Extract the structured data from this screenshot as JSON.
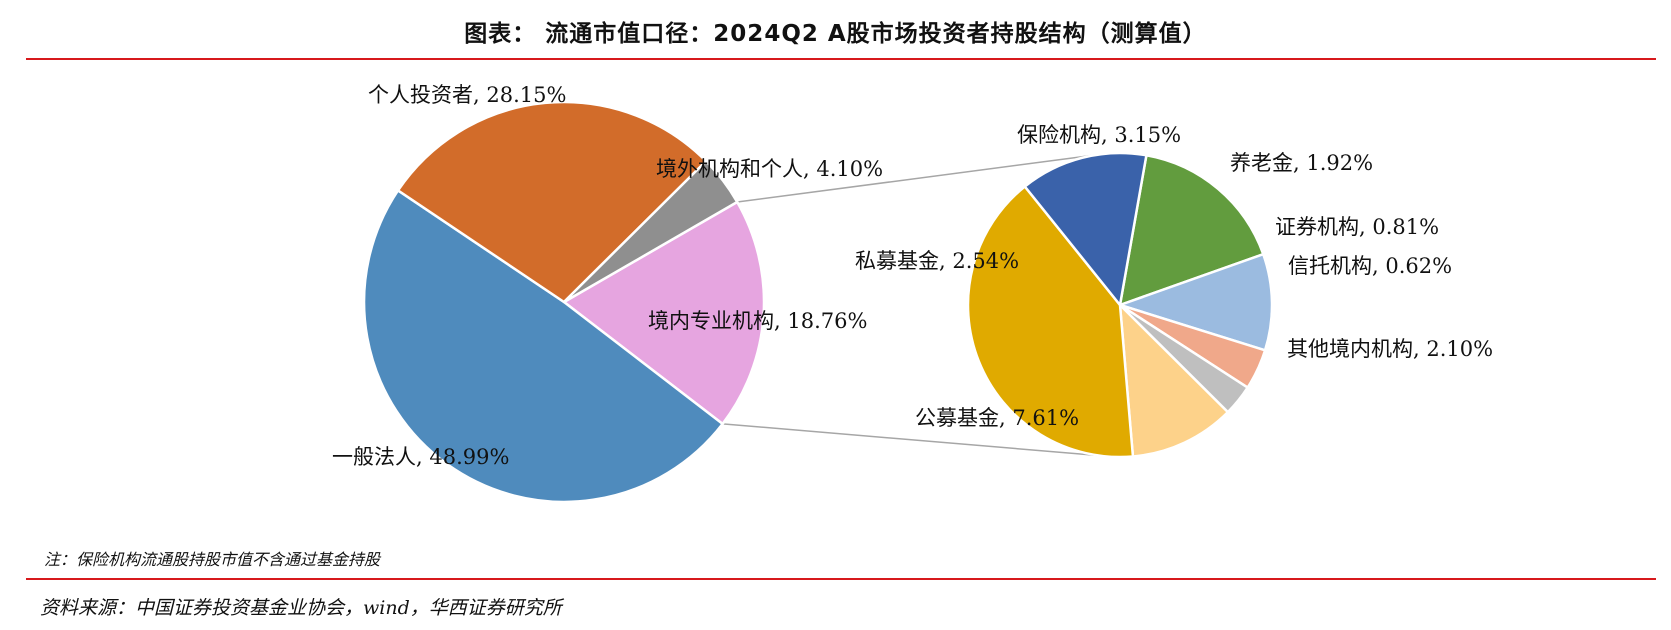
{
  "title": "图表： 流通市值口径：2024Q2 A股市场投资者持股结构（测算值）",
  "note": "注：保险机构流通股持股市值不含通过基金持股",
  "source": "资料来源：中国证券投资基金业协会，wind，华西证券研究所",
  "chart_data": [
    {
      "type": "pie",
      "name": "main",
      "unit": "%",
      "slices": [
        {
          "label": "境内专业机构",
          "value": 18.76,
          "text": "境内专业机构, 18.76%",
          "color": "#e6a5e0"
        },
        {
          "label": "一般法人",
          "value": 48.99,
          "text": "一般法人, 48.99%",
          "color": "#4f8bbd"
        },
        {
          "label": "个人投资者",
          "value": 28.15,
          "text": "个人投资者, 28.15%",
          "color": "#d26c2a"
        },
        {
          "label": "境外机构和个人",
          "value": 4.1,
          "text": "境外机构和个人, 4.10%",
          "color": "#8f8f8f"
        }
      ]
    },
    {
      "type": "pie",
      "name": "breakdown",
      "unit": "%",
      "breakdown_of": "境内专业机构",
      "slices": [
        {
          "label": "保险机构",
          "value": 3.15,
          "text": "保险机构, 3.15%",
          "color": "#629c3e"
        },
        {
          "label": "养老金",
          "value": 1.92,
          "text": "养老金, 1.92%",
          "color": "#9bbbe0"
        },
        {
          "label": "证券机构",
          "value": 0.81,
          "text": "证券机构, 0.81%",
          "color": "#f0a88a"
        },
        {
          "label": "信托机构",
          "value": 0.62,
          "text": "信托机构, 0.62%",
          "color": "#bfbfbf"
        },
        {
          "label": "其他境内机构",
          "value": 2.1,
          "text": "其他境内机构, 2.10%",
          "color": "#fdd28a"
        },
        {
          "label": "公募基金",
          "value": 7.61,
          "text": "公募基金, 7.61%",
          "color": "#e0aa00"
        },
        {
          "label": "私募基金",
          "value": 2.54,
          "text": "私募基金, 2.54%",
          "color": "#3a62aa"
        }
      ]
    }
  ]
}
